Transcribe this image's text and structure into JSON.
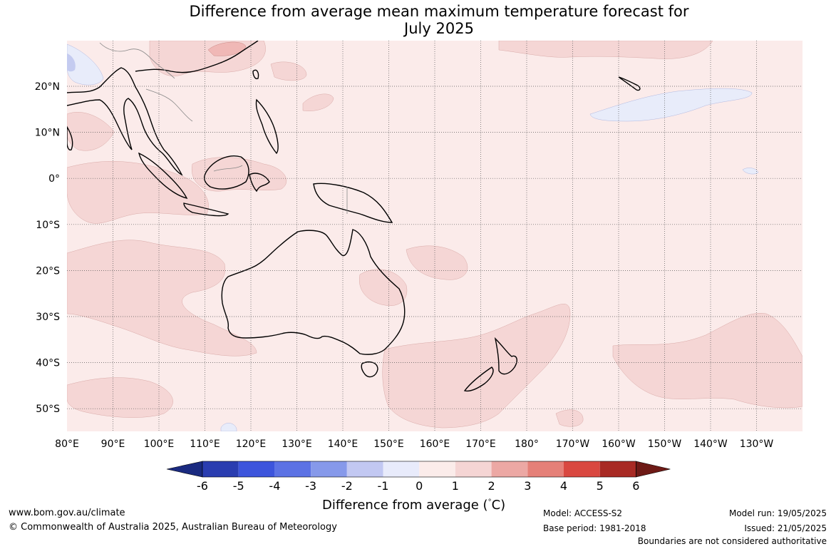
{
  "title": {
    "line1": "Difference from average mean maximum temperature forecast for",
    "line2": "July 2025"
  },
  "map": {
    "lat_labels": [
      "20°N",
      "10°N",
      "0°",
      "10°S",
      "20°S",
      "30°S",
      "40°S",
      "50°S"
    ],
    "lon_labels": [
      "80°E",
      "90°E",
      "100°E",
      "110°E",
      "120°E",
      "130°E",
      "140°E",
      "150°E",
      "160°E",
      "170°E",
      "180°",
      "170°W",
      "160°W",
      "150°W",
      "140°W",
      "130°W"
    ],
    "background_color": "#fbebea",
    "anomaly_colors": {
      "light_warm": "#f5d6d5",
      "medium_warm": "#f0b8b6",
      "light_cool": "#e8ecfa",
      "cool": "#c4cbf0"
    }
  },
  "colorbar": {
    "ticks": [
      "-6",
      "-5",
      "-4",
      "-3",
      "-2",
      "-1",
      "0",
      "1",
      "2",
      "3",
      "4",
      "5",
      "6"
    ],
    "colors": [
      "#1a2a80",
      "#2a3db0",
      "#3d55dc",
      "#5c72e4",
      "#8699ea",
      "#c2c8f2",
      "#e8ebfb",
      "#fbecea",
      "#f5d5d4",
      "#eca8a4",
      "#e58078",
      "#d94840",
      "#a82a24",
      "#6e1a16"
    ],
    "label": "Difference from average (°C)",
    "label_prefix": "Difference from average (",
    "label_unit": "°C",
    "label_suffix": ")"
  },
  "footer": {
    "website": "www.bom.gov.au/climate",
    "copyright": "© Commonwealth of Australia 2025, Australian Bureau of Meteorology",
    "model": "Model: ACCESS-S2",
    "base_period": "Base period: 1981-2018",
    "model_run": "Model run: 19/05/2025",
    "issued": "Issued: 21/05/2025",
    "disclaimer": "Boundaries are not considered authoritative"
  }
}
